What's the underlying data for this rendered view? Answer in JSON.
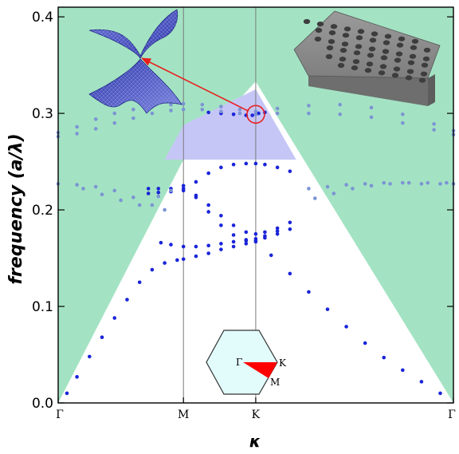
{
  "chart_data": {
    "type": "scatter",
    "title": "",
    "ylabel": "frequency (a/λ)",
    "xlabel": "κ",
    "ylim": [
      0.0,
      0.41
    ],
    "y_ticks": [
      "0.0",
      "0.1",
      "0.2",
      "0.3",
      "0.4"
    ],
    "x_ticks": [
      "Γ",
      "M",
      "K",
      "Γ"
    ],
    "x_tick_positions": [
      0,
      1,
      1.577,
      3.155
    ],
    "brillouin_zone_labels": [
      "Γ",
      "K",
      "M"
    ],
    "grid": false,
    "colors": {
      "light_cone": "#a3e3c3",
      "band_gap": "#c6c6f6",
      "guided_modes": "#1a24d8",
      "leaky_modes": "#7c94d4",
      "zone": "#e2fbfb",
      "irreducible_wedge": "#ff0000",
      "annotation": "#e82020"
    },
    "light_line": {
      "x": [
        0,
        1,
        1.577,
        3.155
      ],
      "y": [
        0.0,
        0.252,
        0.333,
        0.0
      ]
    },
    "band_gap_region": {
      "x": [
        0.85,
        1.0,
        1.577,
        1.9,
        1.9,
        0.85
      ],
      "y": [
        0.252,
        0.288,
        0.325,
        0.252,
        0.252,
        0.252
      ]
    },
    "series": [
      {
        "mode": "guided",
        "x": [
          0.07,
          0.15,
          0.25,
          0.35,
          0.45,
          0.55,
          0.65,
          0.75,
          0.85,
          0.95,
          1.0,
          1.1,
          1.2,
          1.3,
          1.4,
          1.5,
          1.577,
          1.7,
          1.85,
          2.0,
          2.15,
          2.3,
          2.45,
          2.6,
          2.75,
          2.9,
          3.05
        ],
        "y": [
          0.01,
          0.027,
          0.048,
          0.068,
          0.088,
          0.107,
          0.125,
          0.138,
          0.145,
          0.148,
          0.149,
          0.152,
          0.155,
          0.159,
          0.162,
          0.165,
          0.167,
          0.153,
          0.134,
          0.115,
          0.097,
          0.079,
          0.062,
          0.047,
          0.034,
          0.022,
          0.01
        ]
      },
      {
        "mode": "guided",
        "x": [
          0.82,
          0.9,
          1.0,
          1.1,
          1.2,
          1.3,
          1.4,
          1.5,
          1.577,
          1.65,
          1.75
        ],
        "y": [
          0.166,
          0.164,
          0.162,
          0.162,
          0.163,
          0.165,
          0.167,
          0.169,
          0.17,
          0.173,
          0.178
        ]
      },
      {
        "mode": "guided",
        "x": [
          0.72,
          0.8,
          0.9,
          1.0,
          1.1,
          1.2,
          1.3,
          1.4,
          1.5,
          1.577,
          1.65,
          1.75,
          1.85
        ],
        "y": [
          0.222,
          0.222,
          0.222,
          0.222,
          0.215,
          0.205,
          0.194,
          0.184,
          0.177,
          0.175,
          0.177,
          0.181,
          0.187
        ]
      },
      {
        "mode": "guided",
        "x": [
          0.72,
          0.8,
          0.9,
          1.0,
          1.1,
          1.2,
          1.3,
          1.4,
          1.5,
          1.577,
          1.65,
          1.75,
          1.85
        ],
        "y": [
          0.217,
          0.218,
          0.219,
          0.22,
          0.229,
          0.238,
          0.244,
          0.247,
          0.248,
          0.248,
          0.247,
          0.244,
          0.24
        ]
      },
      {
        "mode": "guided",
        "x": [
          1.0,
          1.1,
          1.2,
          1.3,
          1.4,
          1.5,
          1.577,
          1.65,
          1.75,
          1.85
        ],
        "y": [
          0.225,
          0.213,
          0.198,
          0.184,
          0.174,
          0.168,
          0.168,
          0.171,
          0.175,
          0.18
        ]
      },
      {
        "mode": "guided",
        "x": [
          1.2,
          1.3,
          1.4,
          1.5,
          1.55,
          1.577,
          1.6,
          1.65
        ],
        "y": [
          0.301,
          0.3,
          0.299,
          0.298,
          0.298,
          0.299,
          0.3,
          0.301
        ]
      },
      {
        "mode": "leaky",
        "x": [
          0.0,
          0.15,
          0.3,
          0.45,
          0.6,
          0.75,
          0.9,
          1.0,
          1.15,
          1.3,
          1.45,
          1.577,
          1.75,
          2.0,
          2.25,
          2.5,
          2.75,
          3.0,
          3.155
        ],
        "y": [
          0.276,
          0.279,
          0.284,
          0.29,
          0.295,
          0.3,
          0.303,
          0.304,
          0.304,
          0.302,
          0.3,
          0.299,
          0.3,
          0.3,
          0.299,
          0.296,
          0.29,
          0.283,
          0.278
        ]
      },
      {
        "mode": "leaky",
        "x": [
          0.0,
          0.15,
          0.3,
          0.45,
          0.6,
          0.75,
          0.9,
          1.0,
          1.15,
          1.3,
          1.45,
          1.577,
          1.75,
          2.0,
          2.25,
          2.5,
          2.75,
          3.0,
          3.155
        ],
        "y": [
          0.28,
          0.286,
          0.294,
          0.3,
          0.304,
          0.307,
          0.309,
          0.31,
          0.309,
          0.307,
          0.304,
          0.302,
          0.305,
          0.308,
          0.309,
          0.306,
          0.299,
          0.289,
          0.282
        ]
      },
      {
        "mode": "leaky",
        "x": [
          0.0,
          0.15,
          0.3,
          0.45,
          0.6,
          0.75,
          0.85
        ],
        "y": [
          0.227,
          0.226,
          0.224,
          0.22,
          0.213,
          0.205,
          0.2
        ]
      },
      {
        "mode": "leaky",
        "x": [
          0.2,
          0.35,
          0.5,
          0.65,
          0.8,
          0.9
        ],
        "y": [
          0.222,
          0.216,
          0.21,
          0.205,
          0.214,
          0.22
        ]
      },
      {
        "mode": "leaky",
        "x": [
          2.0,
          2.15,
          2.3,
          2.45,
          2.6,
          2.75,
          2.9,
          3.05,
          3.155
        ],
        "y": [
          0.222,
          0.224,
          0.226,
          0.227,
          0.228,
          0.228,
          0.227,
          0.227,
          0.227
        ]
      },
      {
        "mode": "leaky",
        "x": [
          2.05,
          2.2,
          2.35,
          2.5,
          2.65,
          2.8,
          2.95,
          3.1
        ],
        "y": [
          0.212,
          0.217,
          0.222,
          0.225,
          0.227,
          0.228,
          0.228,
          0.228
        ]
      }
    ],
    "dirac_point": {
      "x": 1.577,
      "y": 0.299
    }
  }
}
